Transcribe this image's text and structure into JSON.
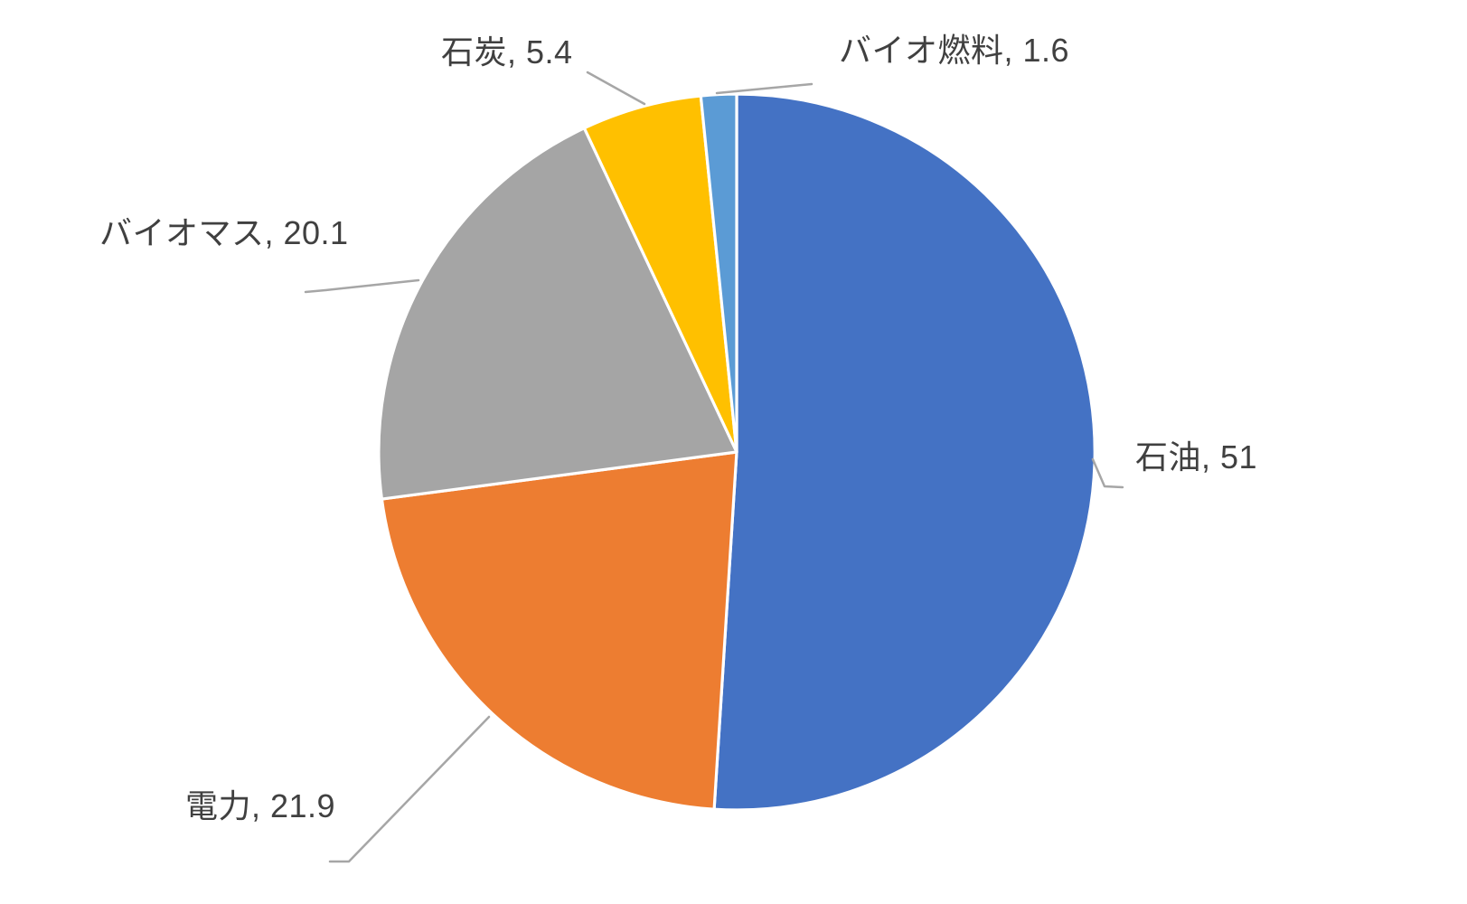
{
  "chart_data": {
    "type": "pie",
    "title": "",
    "start_angle_deg": 0,
    "direction": "clockwise",
    "total": 100,
    "legend": "none",
    "data_labels": "category-name and value, outside end, with leader lines",
    "label_text_color": "#404040",
    "leader_line_color": "#A6A6A6",
    "slice_border_color": "#FFFFFF",
    "background": "#FFFFFF",
    "slices": [
      {
        "label": "石油",
        "value": 51,
        "display": "石油, 51",
        "color": "#4472C4"
      },
      {
        "label": "電力",
        "value": 21.9,
        "display": "電力, 21.9",
        "color": "#ED7D31"
      },
      {
        "label": "バイオマス",
        "value": 20.1,
        "display": "バイオマス, 20.1",
        "color": "#A5A5A5"
      },
      {
        "label": "石炭",
        "value": 5.4,
        "display": "石炭, 5.4",
        "color": "#FFC000"
      },
      {
        "label": "バイオ燃料",
        "value": 1.6,
        "display": "バイオ燃料, 1.6",
        "color": "#5B9BD5"
      }
    ]
  }
}
